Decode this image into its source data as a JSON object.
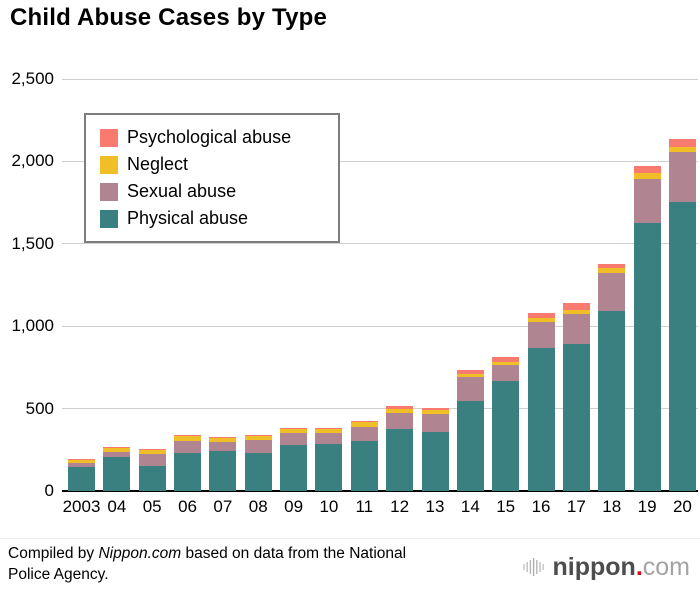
{
  "title": "Child Abuse Cases by Type",
  "chart_data": {
    "type": "bar",
    "stacked": true,
    "title": "Child Abuse Cases by Type",
    "xlabel": "",
    "ylabel": "",
    "ylim": [
      0,
      2500
    ],
    "yticks": [
      {
        "value": 0,
        "label": "0"
      },
      {
        "value": 500,
        "label": "500"
      },
      {
        "value": 1000,
        "label": "1,000"
      },
      {
        "value": 1500,
        "label": "1,500"
      },
      {
        "value": 2000,
        "label": "2,000"
      },
      {
        "value": 2500,
        "label": "2,500"
      }
    ],
    "grid": true,
    "legend_position": "upper-left",
    "legend_order": [
      "Psychological abuse",
      "Neglect",
      "Sexual abuse",
      "Physical abuse"
    ],
    "categories": [
      "2003",
      "04",
      "05",
      "06",
      "07",
      "08",
      "09",
      "10",
      "11",
      "12",
      "13",
      "14",
      "15",
      "16",
      "17",
      "18",
      "19",
      "20"
    ],
    "series": [
      {
        "name": "Physical abuse",
        "color": "#3A8080",
        "values": [
          145,
          205,
          150,
          230,
          240,
          230,
          280,
          285,
          305,
          375,
          360,
          545,
          670,
          865,
          895,
          1095,
          1629,
          1756
        ]
      },
      {
        "name": "Sexual abuse",
        "color": "#B08591",
        "values": [
          25,
          30,
          75,
          75,
          55,
          80,
          75,
          65,
          85,
          100,
          105,
          145,
          95,
          160,
          180,
          226,
          266,
          299
        ]
      },
      {
        "name": "Neglect",
        "color": "#F0BE27",
        "values": [
          20,
          25,
          25,
          30,
          30,
          25,
          20,
          30,
          30,
          25,
          25,
          20,
          20,
          25,
          25,
          31,
          33,
          32
        ]
      },
      {
        "name": "Psychological abuse",
        "color": "#F97B6F",
        "values": [
          5,
          5,
          5,
          5,
          5,
          5,
          5,
          5,
          5,
          15,
          15,
          25,
          30,
          30,
          40,
          28,
          44,
          46
        ]
      }
    ]
  },
  "footer": {
    "prefix": "Compiled by ",
    "source_name": "Nippon.com",
    "suffix": " based on data from the National Police Agency."
  },
  "logo": {
    "name": "nippon",
    "dot": ".",
    "tld": "com"
  },
  "colors": {
    "gridline": "#cfcfcf",
    "axis": "#000000",
    "legend_border": "#7d7d7d",
    "logo_name": "#4d4d4d",
    "logo_dot": "#e60012",
    "logo_tld": "#a3a3a3"
  }
}
